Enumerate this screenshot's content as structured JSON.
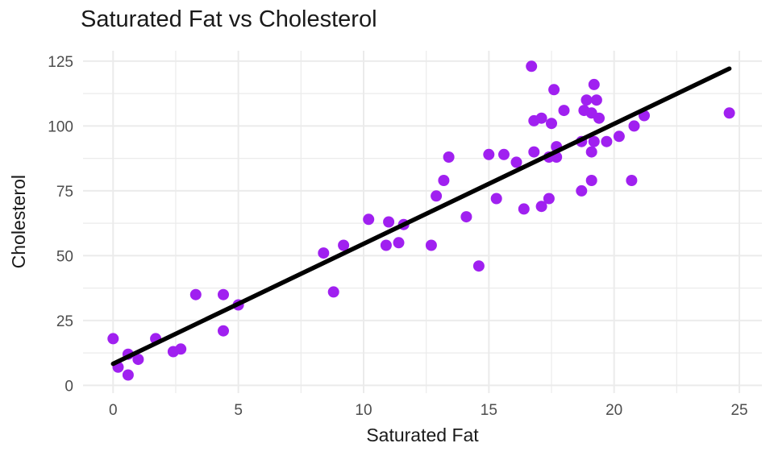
{
  "chart_data": {
    "type": "scatter",
    "title": "Saturated Fat vs Cholesterol",
    "xlabel": "Saturated Fat",
    "ylabel": "Cholesterol",
    "x_ticks": [
      0,
      5,
      10,
      15,
      20,
      25
    ],
    "y_ticks": [
      0,
      25,
      50,
      75,
      100,
      125
    ],
    "x_minor_ticks": [
      2.5,
      7.5,
      12.5,
      17.5,
      22.5
    ],
    "y_minor_ticks": [
      12.5,
      37.5,
      62.5,
      87.5,
      112.5
    ],
    "xlim": [
      -1.2,
      25.9
    ],
    "ylim": [
      -3,
      129
    ],
    "grid": true,
    "legend": false,
    "background_color": "#ffffff",
    "grid_color": "#ebebeb",
    "point_color": "#a020f0",
    "trend_line_color": "#000000",
    "tick_label_color": "#4d4d4d",
    "points": [
      [
        0.0,
        18
      ],
      [
        0.2,
        7
      ],
      [
        0.6,
        12
      ],
      [
        0.6,
        4
      ],
      [
        1.0,
        10
      ],
      [
        1.7,
        18
      ],
      [
        2.4,
        13
      ],
      [
        2.7,
        14
      ],
      [
        3.3,
        35
      ],
      [
        4.4,
        35
      ],
      [
        4.4,
        21
      ],
      [
        5.0,
        31
      ],
      [
        8.4,
        51
      ],
      [
        8.8,
        36
      ],
      [
        9.2,
        54
      ],
      [
        10.2,
        64
      ],
      [
        10.9,
        54
      ],
      [
        11.0,
        63
      ],
      [
        11.4,
        55
      ],
      [
        11.6,
        62
      ],
      [
        12.7,
        54
      ],
      [
        12.9,
        73
      ],
      [
        13.2,
        79
      ],
      [
        13.4,
        88
      ],
      [
        14.1,
        65
      ],
      [
        14.6,
        46
      ],
      [
        15.0,
        89
      ],
      [
        15.3,
        72
      ],
      [
        15.6,
        89
      ],
      [
        16.1,
        86
      ],
      [
        16.4,
        68
      ],
      [
        16.7,
        123
      ],
      [
        16.8,
        102
      ],
      [
        16.8,
        90
      ],
      [
        17.1,
        103
      ],
      [
        17.1,
        69
      ],
      [
        17.4,
        72
      ],
      [
        17.4,
        88
      ],
      [
        17.5,
        101
      ],
      [
        17.6,
        114
      ],
      [
        17.7,
        92
      ],
      [
        17.7,
        88
      ],
      [
        18.0,
        106
      ],
      [
        18.7,
        94
      ],
      [
        18.7,
        75
      ],
      [
        18.8,
        106
      ],
      [
        18.9,
        110
      ],
      [
        19.1,
        105
      ],
      [
        19.1,
        90
      ],
      [
        19.1,
        79
      ],
      [
        19.2,
        116
      ],
      [
        19.2,
        94
      ],
      [
        19.3,
        110
      ],
      [
        19.4,
        103
      ],
      [
        19.7,
        94
      ],
      [
        20.2,
        96
      ],
      [
        20.8,
        100
      ],
      [
        20.7,
        79
      ],
      [
        21.2,
        104
      ],
      [
        24.6,
        105
      ]
    ],
    "trend_line": {
      "x1": 0.0,
      "y1": 8.3,
      "x2": 24.6,
      "y2": 122.1
    }
  }
}
